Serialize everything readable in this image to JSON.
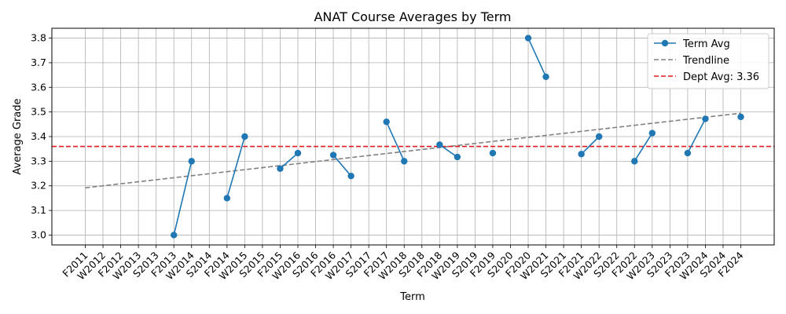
{
  "chart_data": {
    "type": "line",
    "title": "ANAT Course Averages by Term",
    "xlabel": "Term",
    "ylabel": "Average Grade",
    "ylim": [
      2.96,
      3.84
    ],
    "yticks": [
      3.0,
      3.1,
      3.2,
      3.3,
      3.4,
      3.5,
      3.6,
      3.7,
      3.8
    ],
    "grid": true,
    "legend_position": "top-right",
    "categories": [
      "F2011",
      "W2012",
      "F2012",
      "W2013",
      "S2013",
      "F2013",
      "W2014",
      "S2014",
      "F2014",
      "W2015",
      "S2015",
      "F2015",
      "W2016",
      "S2016",
      "F2016",
      "W2017",
      "S2017",
      "F2017",
      "W2018",
      "S2018",
      "F2018",
      "W2019",
      "S2019",
      "F2019",
      "S2020",
      "F2020",
      "W2021",
      "S2021",
      "F2021",
      "W2022",
      "S2022",
      "F2022",
      "W2023",
      "S2023",
      "F2023",
      "W2024",
      "S2024",
      "F2024"
    ],
    "series": [
      {
        "name": "Term Avg",
        "color": "#1f77b4",
        "style": "solid-markers",
        "values": [
          null,
          null,
          null,
          null,
          null,
          3.0,
          3.3,
          null,
          3.15,
          3.4,
          null,
          3.27,
          3.333,
          null,
          3.325,
          3.24,
          null,
          3.46,
          3.3,
          null,
          3.367,
          3.317,
          null,
          3.333,
          null,
          3.8,
          3.643,
          null,
          3.329,
          3.4,
          null,
          3.3,
          3.414,
          null,
          3.333,
          3.472,
          null,
          3.48
        ]
      },
      {
        "name": "Trendline",
        "color": "#808080",
        "style": "dashed",
        "x_start": "F2011",
        "x_end": "F2024",
        "y_start": 3.192,
        "y_end": 3.495
      },
      {
        "name": "Dept Avg: 3.36",
        "color": "#e41a1c",
        "style": "dashed-horizontal",
        "value": 3.36
      }
    ]
  }
}
